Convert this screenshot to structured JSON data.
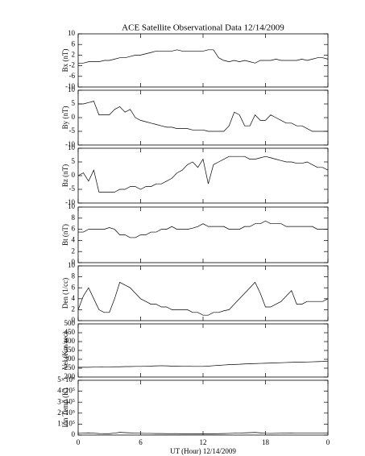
{
  "chart_data": [
    {
      "type": "line",
      "title": "ACE Satellite Observational Data 12/14/2009",
      "ylabel": "Bx (nT)",
      "x": [
        0,
        0.5,
        1,
        1.5,
        2,
        2.5,
        3,
        3.5,
        4,
        4.5,
        5,
        5.5,
        6,
        6.5,
        7,
        7.5,
        8,
        8.5,
        9,
        9.5,
        10,
        10.5,
        11,
        11.5,
        12,
        12.5,
        13,
        13.5,
        14,
        14.5,
        15,
        15.5,
        16,
        16.5,
        17,
        17.5,
        18,
        18.5,
        19,
        19.5,
        20,
        20.5,
        21,
        21.5,
        22,
        22.5,
        23,
        23.5,
        24
      ],
      "values": [
        -1,
        -1,
        -0.5,
        -0.5,
        -0.5,
        0,
        0,
        0.5,
        1,
        1,
        1.5,
        2,
        2,
        2.5,
        3,
        3.5,
        3.5,
        3.5,
        3.5,
        4,
        3.5,
        3.5,
        3.5,
        3.5,
        3.5,
        4,
        4,
        1,
        0,
        -0.5,
        0,
        -0.5,
        0,
        -0.5,
        -1,
        0,
        0,
        0,
        0.5,
        0,
        0,
        0,
        0,
        0.5,
        0,
        0.5,
        1,
        1,
        0.5
      ],
      "color": "#000000",
      "xlim": [
        0,
        24
      ],
      "ylim": [
        -10,
        10
      ],
      "yticks": [
        -10,
        -6,
        -2,
        2,
        6,
        10
      ]
    },
    {
      "type": "line",
      "ylabel": "By (nT)",
      "x": [
        0,
        0.5,
        1,
        1.5,
        2,
        2.5,
        3,
        3.5,
        4,
        4.5,
        5,
        5.5,
        6,
        6.5,
        7,
        7.5,
        8,
        8.5,
        9,
        9.5,
        10,
        10.5,
        11,
        11.5,
        12,
        12.5,
        13,
        13.5,
        14,
        14.5,
        15,
        15.5,
        16,
        16.5,
        17,
        17.5,
        18,
        18.5,
        19,
        19.5,
        20,
        20.5,
        21,
        21.5,
        22,
        22.5,
        23,
        23.5,
        24
      ],
      "values": [
        5,
        5,
        5.5,
        6,
        1,
        1,
        1,
        3,
        4,
        2,
        3,
        0,
        -1,
        -1.5,
        -2,
        -2.5,
        -3,
        -3.5,
        -3.5,
        -4,
        -4,
        -4,
        -4.5,
        -4.5,
        -4.5,
        -5,
        -5,
        -5,
        -5,
        -3,
        2,
        1,
        -3,
        -3,
        1,
        -1,
        -1,
        1,
        0,
        -1,
        -2,
        -2,
        -3,
        -3,
        -4,
        -5,
        -5,
        -5,
        -5
      ],
      "color": "#000000",
      "xlim": [
        0,
        24
      ],
      "ylim": [
        -10,
        10
      ],
      "yticks": [
        -10,
        -5,
        0,
        5,
        10
      ]
    },
    {
      "type": "line",
      "ylabel": "Bz (nT)",
      "x": [
        0,
        0.5,
        1,
        1.5,
        2,
        2.5,
        3,
        3.5,
        4,
        4.5,
        5,
        5.5,
        6,
        6.5,
        7,
        7.5,
        8,
        8.5,
        9,
        9.5,
        10,
        10.5,
        11,
        11.5,
        12,
        12.5,
        13,
        13.5,
        14,
        14.5,
        15,
        15.5,
        16,
        16.5,
        17,
        17.5,
        18,
        18.5,
        19,
        19.5,
        20,
        20.5,
        21,
        21.5,
        22,
        22.5,
        23,
        23.5,
        24
      ],
      "values": [
        0,
        1,
        -2,
        2,
        -6,
        -6,
        -6,
        -6,
        -5,
        -5,
        -4,
        -4,
        -5,
        -4,
        -4,
        -3,
        -3,
        -2,
        -1,
        1,
        2,
        4,
        5,
        3,
        6,
        -3,
        4,
        5,
        6,
        7,
        7,
        7,
        7,
        6,
        6,
        6.5,
        7,
        6.5,
        6,
        5.5,
        5,
        5,
        4.5,
        4.5,
        5,
        4,
        3,
        3,
        2
      ],
      "color": "#000000",
      "xlim": [
        0,
        24
      ],
      "ylim": [
        -10,
        10
      ],
      "yticks": [
        -10,
        -5,
        0,
        5,
        10
      ]
    },
    {
      "type": "line",
      "ylabel": "Bt (nT)",
      "x": [
        0,
        0.5,
        1,
        1.5,
        2,
        2.5,
        3,
        3.5,
        4,
        4.5,
        5,
        5.5,
        6,
        6.5,
        7,
        7.5,
        8,
        8.5,
        9,
        9.5,
        10,
        10.5,
        11,
        11.5,
        12,
        12.5,
        13,
        13.5,
        14,
        14.5,
        15,
        15.5,
        16,
        16.5,
        17,
        17.5,
        18,
        18.5,
        19,
        19.5,
        20,
        20.5,
        21,
        21.5,
        22,
        22.5,
        23,
        23.5,
        24
      ],
      "values": [
        5.5,
        5.5,
        6,
        6,
        6,
        6,
        6.3,
        6,
        5,
        5,
        4.5,
        4.5,
        5,
        5,
        5.5,
        5.5,
        6,
        6,
        6.5,
        6,
        6,
        6,
        6.2,
        6.5,
        7,
        6.5,
        6.5,
        6.5,
        6.5,
        6,
        6,
        6,
        6.5,
        6.5,
        7,
        7,
        7.5,
        7,
        7,
        7,
        6.5,
        6.5,
        6.5,
        6.5,
        6.5,
        6.5,
        6,
        6,
        6
      ],
      "color": "#000000",
      "xlim": [
        0,
        24
      ],
      "ylim": [
        0,
        10
      ],
      "yticks": [
        0,
        2,
        4,
        6,
        8,
        10
      ]
    },
    {
      "type": "line",
      "ylabel": "Den (1/cc)",
      "x": [
        0,
        0.5,
        1,
        1.5,
        2,
        2.5,
        3,
        3.5,
        4,
        4.5,
        5,
        5.5,
        6,
        6.5,
        7,
        7.5,
        8,
        8.5,
        9,
        9.5,
        10,
        10.5,
        11,
        11.5,
        12,
        12.5,
        13,
        13.5,
        14,
        14.5,
        15,
        15.5,
        16,
        16.5,
        17,
        17.5,
        18,
        18.5,
        19,
        19.5,
        20,
        20.5,
        21,
        21.5,
        22,
        22.5,
        23,
        23.5,
        24
      ],
      "values": [
        2,
        4.5,
        6,
        4,
        2,
        1.5,
        1.5,
        4,
        7,
        6.5,
        6,
        5,
        4,
        3.5,
        3,
        3,
        2.5,
        2.5,
        2,
        2,
        2,
        2,
        1.5,
        1.5,
        1,
        1,
        1.5,
        1.5,
        1.8,
        2,
        3,
        4,
        5,
        6,
        7,
        5,
        2.5,
        2.5,
        3,
        3.5,
        4.5,
        5.5,
        3,
        3,
        3.5,
        3.5,
        3.5,
        3.5,
        4
      ],
      "color": "#000000",
      "xlim": [
        0,
        24
      ],
      "ylim": [
        0,
        10
      ],
      "yticks": [
        0,
        2,
        4,
        6,
        8,
        10
      ]
    },
    {
      "type": "line",
      "ylabel": "Vel (Km/sec)",
      "x": [
        0,
        0.5,
        1,
        1.5,
        2,
        2.5,
        3,
        3.5,
        4,
        4.5,
        5,
        5.5,
        6,
        6.5,
        7,
        7.5,
        8,
        8.5,
        9,
        9.5,
        10,
        10.5,
        11,
        11.5,
        12,
        12.5,
        13,
        13.5,
        14,
        14.5,
        15,
        15.5,
        16,
        16.5,
        17,
        17.5,
        18,
        18.5,
        19,
        19.5,
        20,
        20.5,
        21,
        21.5,
        22,
        22.5,
        23,
        23.5,
        24
      ],
      "values": [
        255,
        255,
        255,
        256,
        256,
        257,
        257,
        258,
        258,
        259,
        259,
        260,
        260,
        261,
        262,
        263,
        264,
        263,
        262,
        262,
        261,
        261,
        260,
        260,
        260,
        262,
        264,
        266,
        268,
        270,
        271,
        272,
        274,
        275,
        276,
        277,
        278,
        279,
        280,
        281,
        282,
        283,
        284,
        284,
        285,
        286,
        287,
        288,
        290
      ],
      "color": "#000000",
      "xlim": [
        0,
        24
      ],
      "ylim": [
        200,
        500
      ],
      "yticks": [
        200,
        250,
        300,
        350,
        400,
        450,
        500
      ]
    },
    {
      "type": "line",
      "ylabel": "Ion Temp (K)",
      "xlabel": "UT (Hour) 12/14/2009",
      "x": [
        0,
        0.5,
        1,
        1.5,
        2,
        2.5,
        3,
        3.5,
        4,
        4.5,
        5,
        5.5,
        6,
        6.5,
        7,
        7.5,
        8,
        8.5,
        9,
        9.5,
        10,
        10.5,
        11,
        11.5,
        12,
        12.5,
        13,
        13.5,
        14,
        14.5,
        15,
        15.5,
        16,
        16.5,
        17,
        17.5,
        18,
        18.5,
        19,
        19.5,
        20,
        20.5,
        21,
        21.5,
        22,
        22.5,
        23,
        23.5,
        24
      ],
      "values": [
        15000,
        18000,
        20000,
        17000,
        14000,
        13000,
        13000,
        18000,
        25000,
        22000,
        20000,
        18000,
        16000,
        15000,
        15000,
        14000,
        14000,
        13000,
        13000,
        13000,
        12000,
        12000,
        12000,
        11000,
        11000,
        11000,
        12000,
        13000,
        14000,
        15000,
        17000,
        19000,
        20000,
        22000,
        24000,
        20000,
        16000,
        15000,
        16000,
        17000,
        18000,
        19000,
        17000,
        17000,
        18000,
        18000,
        18000,
        18000,
        19000
      ],
      "color": "#000000",
      "xlim": [
        0,
        24
      ],
      "ylim": [
        0,
        500000
      ],
      "yticks": [
        0,
        {
          "value": 100000,
          "label": "1×10⁵"
        },
        {
          "value": 200000,
          "label": "2×10⁵"
        },
        {
          "value": 300000,
          "label": "3×10⁵"
        },
        {
          "value": 400000,
          "label": "4×10⁵"
        },
        {
          "value": 500000,
          "label": "5×10⁵"
        }
      ],
      "xticks": [
        0,
        6,
        12,
        18,
        {
          "value": 24,
          "label": "0"
        }
      ]
    }
  ]
}
